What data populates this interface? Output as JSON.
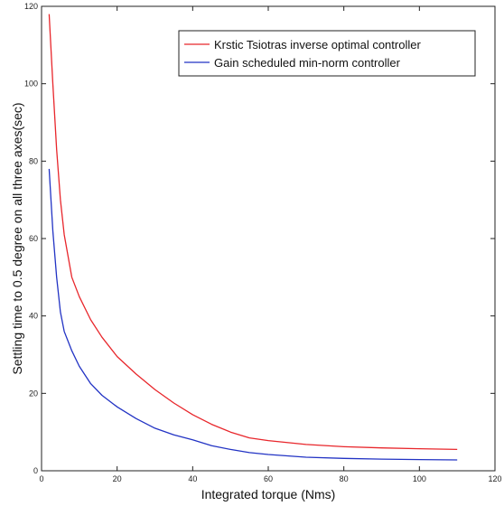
{
  "chart_data": {
    "type": "line",
    "title": "",
    "xlabel": "Integrated torque (Nms)",
    "ylabel": "Settling time to 0.5 degree on all three axes(sec)",
    "xlim": [
      0,
      120
    ],
    "ylim": [
      0,
      120
    ],
    "xticks": [
      0,
      20,
      40,
      60,
      80,
      100,
      120
    ],
    "yticks": [
      0,
      20,
      40,
      60,
      80,
      100,
      120
    ],
    "grid": false,
    "legend": "top-right",
    "series": [
      {
        "name": "Krstic Tsiotras inverse optimal controller",
        "color": "#e8262b",
        "x": [
          2,
          3,
          4,
          5,
          6,
          8,
          10,
          13,
          16,
          20,
          25,
          30,
          35,
          40,
          45,
          50,
          55,
          60,
          70,
          80,
          90,
          100,
          110
        ],
        "y": [
          118,
          100,
          83,
          70,
          61,
          50,
          45,
          39,
          34.5,
          29.5,
          25,
          21,
          17.5,
          14.5,
          12,
          10,
          8.5,
          7.8,
          6.8,
          6.2,
          5.9,
          5.7,
          5.5
        ]
      },
      {
        "name": "Gain scheduled min-norm controller",
        "color": "#2233c4",
        "x": [
          2,
          3,
          4,
          5,
          6,
          8,
          10,
          13,
          16,
          20,
          25,
          30,
          35,
          40,
          45,
          50,
          55,
          60,
          70,
          80,
          90,
          100,
          110
        ],
        "y": [
          78,
          62,
          50,
          41,
          36,
          31,
          27,
          22.5,
          19.5,
          16.5,
          13.5,
          11,
          9.3,
          8,
          6.5,
          5.5,
          4.7,
          4.2,
          3.5,
          3.2,
          3,
          2.9,
          2.8
        ]
      }
    ]
  }
}
